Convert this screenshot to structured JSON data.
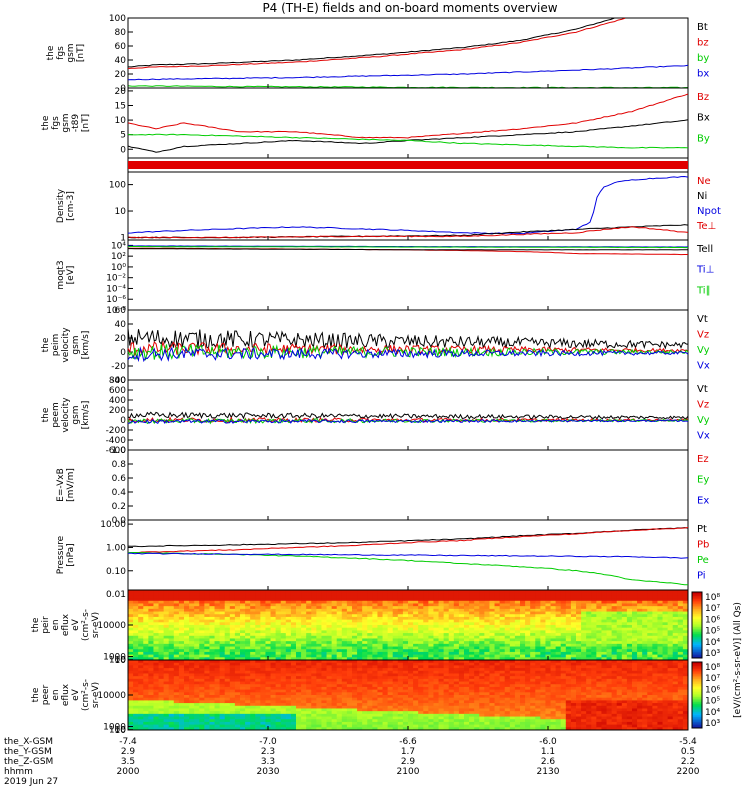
{
  "title": "P4 (TH-E) fields and on-board moments overview",
  "colors": {
    "black": "#000000",
    "red": "#e00000",
    "green": "#00cc00",
    "blue": "#0000e0"
  },
  "chart_data": [
    {
      "id": "p1",
      "type": "line",
      "ylabel": [
        "the",
        "fgs",
        "gsm",
        "[nT]"
      ],
      "ylim": [
        0,
        100
      ],
      "yticks": [
        "100",
        "80",
        "60",
        "40",
        "20",
        "0"
      ],
      "legend": [
        {
          "name": "Bt",
          "color": "black"
        },
        {
          "name": "bz",
          "color": "red"
        },
        {
          "name": "by",
          "color": "green"
        },
        {
          "name": "bx",
          "color": "blue"
        }
      ],
      "series": [
        {
          "name": "Bt",
          "color": "black",
          "x": [
            0,
            0.05,
            0.15,
            0.3,
            0.45,
            0.6,
            0.7,
            0.8,
            0.87
          ],
          "y": [
            30,
            33,
            35,
            40,
            48,
            58,
            68,
            84,
            100
          ]
        },
        {
          "name": "bz",
          "color": "red",
          "x": [
            0,
            0.05,
            0.15,
            0.3,
            0.45,
            0.6,
            0.7,
            0.8,
            0.89
          ],
          "y": [
            28,
            30,
            32,
            37,
            45,
            55,
            65,
            80,
            100
          ]
        },
        {
          "name": "by",
          "color": "green",
          "x": [
            0,
            0.2,
            0.5,
            0.8,
            1
          ],
          "y": [
            3,
            2,
            1,
            0.5,
            0.5
          ]
        },
        {
          "name": "bx",
          "color": "blue",
          "x": [
            0,
            0.3,
            0.6,
            0.85,
            1
          ],
          "y": [
            12,
            15,
            20,
            27,
            32
          ]
        }
      ]
    },
    {
      "id": "p2",
      "type": "line",
      "ylabel": [
        "the",
        "fgs",
        "gsm",
        "-t89",
        "[nT]"
      ],
      "ylim": [
        -3,
        21
      ],
      "yticks": [
        "20",
        "15",
        "10",
        "5",
        "0"
      ],
      "ytickvals": [
        20,
        15,
        10,
        5,
        0
      ],
      "legend": [
        {
          "name": "Bz",
          "color": "red"
        },
        {
          "name": "Bx",
          "color": "black"
        },
        {
          "name": "By",
          "color": "green"
        }
      ],
      "series": [
        {
          "name": "Bz",
          "color": "red",
          "x": [
            0,
            0.05,
            0.1,
            0.2,
            0.3,
            0.42,
            0.5,
            0.6,
            0.7,
            0.8,
            0.9,
            1
          ],
          "y": [
            9,
            7,
            9,
            6,
            6,
            4,
            4,
            5.5,
            7,
            9,
            13,
            19
          ]
        },
        {
          "name": "Bx",
          "color": "black",
          "x": [
            0,
            0.05,
            0.1,
            0.2,
            0.3,
            0.42,
            0.5,
            0.6,
            0.7,
            0.8,
            0.9,
            1
          ],
          "y": [
            1,
            -1,
            1,
            2,
            3,
            2,
            3,
            4,
            5,
            6,
            8,
            10
          ]
        },
        {
          "name": "By",
          "color": "green",
          "x": [
            0,
            0.1,
            0.2,
            0.3,
            0.4,
            0.5,
            0.6,
            0.7,
            0.8,
            0.9,
            1
          ],
          "y": [
            5,
            5,
            4.5,
            4,
            3.5,
            3,
            2,
            1.5,
            1,
            0.5,
            0.5
          ]
        }
      ]
    },
    {
      "id": "p3",
      "type": "line",
      "yscale": "log",
      "ylabel": [
        "Density",
        "[cm-3]"
      ],
      "ylim": [
        0.8,
        300
      ],
      "yticks": [
        "100",
        "10",
        "1"
      ],
      "ytickvals": [
        100,
        10,
        1
      ],
      "legend": [
        {
          "name": "Ne",
          "color": "red"
        },
        {
          "name": "Ni",
          "color": "black"
        },
        {
          "name": "Npot",
          "color": "blue"
        },
        {
          "name": "Te⊥",
          "color": "red"
        }
      ],
      "series": [
        {
          "name": "Npot",
          "color": "blue",
          "x": [
            0,
            0.15,
            0.3,
            0.45,
            0.6,
            0.7,
            0.8,
            0.83,
            0.85,
            0.87,
            0.9,
            0.95,
            1
          ],
          "y": [
            1.5,
            2,
            2.5,
            2,
            1.5,
            1.4,
            2,
            4,
            80,
            120,
            150,
            180,
            200
          ]
        },
        {
          "name": "Ni",
          "color": "black",
          "x": [
            0,
            0.2,
            0.4,
            0.6,
            0.8,
            0.9,
            1
          ],
          "y": [
            1,
            1,
            1.1,
            1.2,
            2,
            2.5,
            3
          ]
        },
        {
          "name": "Ne",
          "color": "red",
          "x": [
            0,
            0.2,
            0.4,
            0.6,
            0.8,
            0.9,
            1
          ],
          "y": [
            1,
            1,
            1.1,
            1.1,
            1.5,
            2.5,
            1.5
          ]
        }
      ]
    },
    {
      "id": "p4",
      "type": "line",
      "yscale": "log",
      "ylabel": [
        "moqt3",
        "[eV]"
      ],
      "ylim": [
        1e-08,
        100000.0
      ],
      "yticks": [
        "10⁴",
        "10²",
        "10⁰",
        "10⁻²",
        "10⁻⁴",
        "10⁻⁶",
        "10⁻⁸"
      ],
      "ytickvals": [
        10000,
        100,
        1,
        0.01,
        0.0001,
        1e-06,
        1e-08
      ],
      "legend": [
        {
          "name": "Tell",
          "color": "black"
        },
        {
          "name": "Ti⊥",
          "color": "blue"
        },
        {
          "name": "Ti∥",
          "color": "green"
        }
      ],
      "series": [
        {
          "name": "Te⊥",
          "color": "red",
          "x": [
            0,
            0.5,
            0.8,
            1
          ],
          "y": [
            3000,
            1500,
            300,
            200
          ]
        },
        {
          "name": "Tell",
          "color": "black",
          "x": [
            0,
            0.5,
            1
          ],
          "y": [
            2500,
            1500,
            1500
          ]
        },
        {
          "name": "Ti⊥",
          "color": "blue",
          "x": [
            0,
            0.5,
            1
          ],
          "y": [
            8000,
            6000,
            5000
          ]
        },
        {
          "name": "Ti∥",
          "color": "green",
          "x": [
            0,
            0.5,
            1
          ],
          "y": [
            6000,
            5000,
            4000
          ]
        }
      ]
    },
    {
      "id": "p5",
      "type": "line",
      "ylabel": [
        "the",
        "peim",
        "velocity",
        "gsm",
        "[km/s]"
      ],
      "ylim": [
        -40,
        60
      ],
      "yticks": [
        "60",
        "40",
        "20",
        "0",
        "-20",
        "-40"
      ],
      "ytickvals": [
        60,
        40,
        20,
        0,
        -20,
        -40
      ],
      "legend": [
        {
          "name": "Vt",
          "color": "black"
        },
        {
          "name": "Vz",
          "color": "red"
        },
        {
          "name": "Vy",
          "color": "green"
        },
        {
          "name": "Vx",
          "color": "blue"
        }
      ],
      "series": [
        {
          "name": "Vt",
          "color": "black",
          "base": 20,
          "amp": 15,
          "decay": 0.7
        },
        {
          "name": "Vz",
          "color": "red",
          "base": 5,
          "amp": 10,
          "decay": 0.8
        },
        {
          "name": "Vy",
          "color": "green",
          "base": 0,
          "amp": 12,
          "decay": 0.8
        },
        {
          "name": "Vx",
          "color": "blue",
          "base": -3,
          "amp": 10,
          "decay": 0.8
        }
      ]
    },
    {
      "id": "p6",
      "type": "line",
      "ylabel": [
        "the",
        "peem",
        "velocity",
        "gsm",
        "[km/s]"
      ],
      "ylim": [
        -600,
        800
      ],
      "yticks": [
        "800",
        "600",
        "400",
        "200",
        "0",
        "-200",
        "-400",
        "-600"
      ],
      "ytickvals": [
        800,
        600,
        400,
        200,
        0,
        -200,
        -400,
        -600
      ],
      "legend": [
        {
          "name": "Vt",
          "color": "black"
        },
        {
          "name": "Vz",
          "color": "red"
        },
        {
          "name": "Vy",
          "color": "green"
        },
        {
          "name": "Vx",
          "color": "blue"
        }
      ],
      "series": [
        {
          "name": "Vt",
          "color": "black",
          "base": 100,
          "amp": 60,
          "decay": 0.5
        },
        {
          "name": "Vz",
          "color": "red",
          "base": 0,
          "amp": 50,
          "decay": 0.6
        },
        {
          "name": "Vy",
          "color": "green",
          "base": -20,
          "amp": 50,
          "decay": 0.6
        },
        {
          "name": "Vx",
          "color": "blue",
          "base": -30,
          "amp": 40,
          "decay": 0.6
        }
      ]
    },
    {
      "id": "p7",
      "type": "line",
      "ylabel": [
        "E=-VxB",
        "[mV/m]"
      ],
      "ylim": [
        0,
        1
      ],
      "yticks": [
        "1.0",
        "0.8",
        "0.6",
        "0.4",
        "0.2",
        "0.0"
      ],
      "ytickvals": [
        1,
        0.8,
        0.6,
        0.4,
        0.2,
        0
      ],
      "legend": [
        {
          "name": "Ez",
          "color": "red"
        },
        {
          "name": "Ey",
          "color": "green"
        },
        {
          "name": "Ex",
          "color": "blue"
        }
      ],
      "series": []
    },
    {
      "id": "p8",
      "type": "line",
      "yscale": "log",
      "ylabel": [
        "Pressure",
        "[nPa]"
      ],
      "ylim": [
        0.015,
        15
      ],
      "yticks": [
        "10.00",
        "1.00",
        "0.10",
        "0.01"
      ],
      "ytickvals": [
        10,
        1,
        0.1,
        0.01
      ],
      "legend": [
        {
          "name": "Pt",
          "color": "black"
        },
        {
          "name": "Pb",
          "color": "red"
        },
        {
          "name": "Pe",
          "color": "green"
        },
        {
          "name": "Pi",
          "color": "blue"
        }
      ],
      "series": [
        {
          "name": "Pt",
          "color": "black",
          "x": [
            0,
            0.2,
            0.4,
            0.6,
            0.8,
            1
          ],
          "y": [
            1.1,
            1.3,
            1.6,
            2.3,
            4,
            7
          ]
        },
        {
          "name": "Pb",
          "color": "red",
          "x": [
            0,
            0.2,
            0.4,
            0.6,
            0.8,
            1
          ],
          "y": [
            0.6,
            0.8,
            1.2,
            2,
            3.8,
            7
          ]
        },
        {
          "name": "Pe",
          "color": "green",
          "x": [
            0,
            0.2,
            0.4,
            0.6,
            0.8,
            0.9,
            1
          ],
          "y": [
            0.6,
            0.5,
            0.35,
            0.2,
            0.1,
            0.04,
            0.025
          ]
        },
        {
          "name": "Pi",
          "color": "blue",
          "x": [
            0,
            0.3,
            0.6,
            0.9,
            1
          ],
          "y": [
            0.55,
            0.5,
            0.45,
            0.4,
            0.35
          ]
        }
      ]
    },
    {
      "id": "p9",
      "type": "heatmap",
      "ylabel": [
        "the",
        "peir",
        "en",
        "eflux",
        "eV",
        "(cm²-s-",
        "sr-eV)"
      ],
      "yticks": [
        "10000",
        "1000",
        "100",
        "10"
      ],
      "ytickvals": [
        10000,
        1000,
        100,
        10
      ],
      "ylim": [
        6,
        20000
      ]
    },
    {
      "id": "p10",
      "type": "heatmap",
      "ylabel": [
        "the",
        "peer",
        "en",
        "eflux",
        "eV",
        "(cm²-s-",
        "sr-eV)"
      ],
      "yticks": [
        "10000",
        "1000",
        "100",
        "10"
      ],
      "ytickvals": [
        10000,
        1000,
        100,
        10
      ],
      "ylim": [
        6,
        20000
      ]
    }
  ],
  "colorbar": {
    "ticks": [
      "10⁸",
      "10⁷",
      "10⁶",
      "10⁵",
      "10⁴",
      "10³"
    ],
    "label": "[eV/(cm²-s-sr-eV)] (All Qs)",
    "ticks2": [
      "10⁸",
      "10⁷",
      "10⁶",
      "10⁵",
      "10⁴",
      "10³"
    ]
  },
  "xaxis": {
    "labels": [
      "the_X-GSM",
      "the_Y-GSM",
      "the_Z-GSM",
      "hhmm",
      "2019 Jun 27"
    ],
    "ticks": [
      {
        "X": "-7.4",
        "Y": "2.9",
        "Z": "3.5",
        "t": "2000"
      },
      {
        "X": "-7.0",
        "Y": "2.3",
        "Z": "3.3",
        "t": "2030"
      },
      {
        "X": "-6.6",
        "Y": "1.7",
        "Z": "2.9",
        "t": "2100"
      },
      {
        "X": "-6.0",
        "Y": "1.1",
        "Z": "2.6",
        "t": "2130"
      },
      {
        "X": "-5.4",
        "Y": "0.5",
        "Z": "2.2",
        "t": "2200"
      }
    ]
  }
}
